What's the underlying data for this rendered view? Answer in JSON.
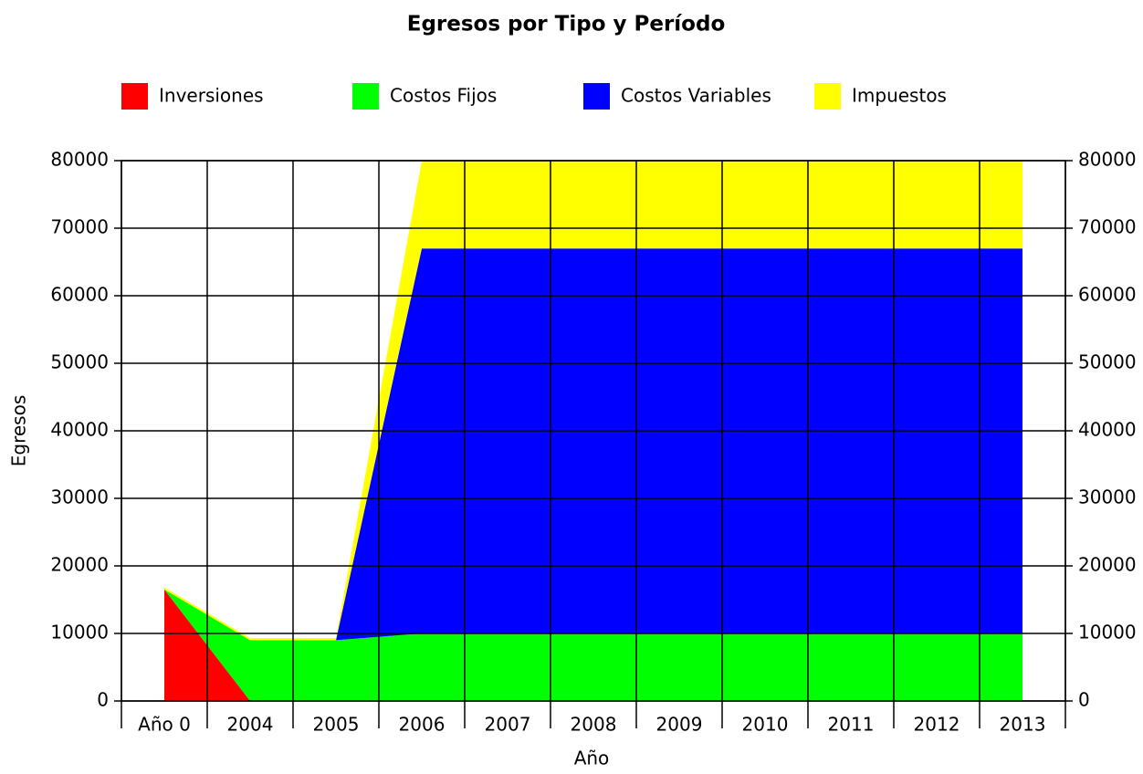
{
  "chart_data": {
    "type": "stacked_area",
    "title": "Egresos por Tipo y Período",
    "x_label": "Año",
    "y_label": "Egresos",
    "categories": [
      "Año 0",
      "2004",
      "2005",
      "2006",
      "2007",
      "2008",
      "2009",
      "2010",
      "2011",
      "2012",
      "2013"
    ],
    "series": [
      {
        "name": "Inversiones",
        "color": "#ff0000",
        "values": [
          16500,
          0,
          0,
          0,
          0,
          0,
          0,
          0,
          0,
          0,
          0
        ]
      },
      {
        "name": "Costos Fijos",
        "color": "#00ff00",
        "values": [
          0,
          9000,
          9000,
          10000,
          10000,
          10000,
          10000,
          10000,
          10000,
          10000,
          10000
        ]
      },
      {
        "name": "Costos Variables",
        "color": "#0000ff",
        "values": [
          0,
          0,
          0,
          57000,
          57000,
          57000,
          57000,
          57000,
          57000,
          57000,
          57000
        ]
      },
      {
        "name": "Impuestos",
        "color": "#ffff00",
        "values": [
          300,
          300,
          300,
          13000,
          13000,
          13000,
          13000,
          13000,
          13000,
          13000,
          13000
        ]
      }
    ],
    "ylim": [
      0,
      80000
    ],
    "yticks": [
      0,
      10000,
      20000,
      30000,
      40000,
      50000,
      60000,
      70000,
      80000
    ],
    "y2lim": [
      0,
      80000
    ],
    "y2ticks": [
      0,
      10000,
      20000,
      30000,
      40000,
      50000,
      60000,
      70000,
      80000
    ],
    "grid": true,
    "legend": "top"
  }
}
